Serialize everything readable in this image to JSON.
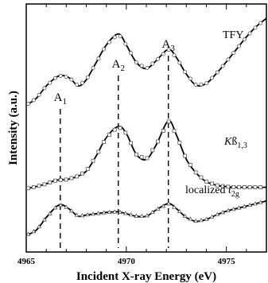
{
  "chart_data": {
    "type": "line",
    "xlabel": "Incident X-ray Energy (eV)",
    "ylabel": "Intensity (a.u.)",
    "xlim": [
      4965,
      4977
    ],
    "xticks": [
      4965,
      4970,
      4975
    ],
    "y_tick_labels": "none",
    "grid": false,
    "legend": "none",
    "peaks": [
      {
        "name": "A",
        "sub": "1",
        "x": 4966.7
      },
      {
        "name": "A",
        "sub": "2",
        "x": 4969.6
      },
      {
        "name": "A",
        "sub": "3",
        "x": 4972.1
      }
    ],
    "series": [
      {
        "name": "TFY",
        "label_parts": [
          {
            "text": "TFY",
            "italic": false,
            "sub": false
          }
        ],
        "marker": "circle",
        "x": [
          4965.0,
          4965.5,
          4966.0,
          4966.5,
          4966.8,
          4967.2,
          4967.6,
          4968.0,
          4968.5,
          4969.0,
          4969.6,
          4970.0,
          4970.5,
          4971.0,
          4971.5,
          4972.1,
          4972.5,
          4973.0,
          4973.5,
          4974.0,
          4974.5,
          4975.0,
          4975.5,
          4976.0,
          4976.5,
          4977.0
        ],
        "y": [
          0.65,
          0.76,
          0.96,
          1.1,
          1.13,
          1.08,
          0.96,
          1.06,
          1.34,
          1.62,
          1.8,
          1.62,
          1.34,
          1.24,
          1.37,
          1.55,
          1.42,
          1.15,
          0.97,
          1.0,
          1.16,
          1.35,
          1.55,
          1.75,
          1.92,
          2.05
        ]
      },
      {
        "name": "Kβ1,3",
        "label_parts": [
          {
            "text": "K",
            "italic": true,
            "sub": false
          },
          {
            "text": "ß",
            "italic": false,
            "sub": false
          },
          {
            "text": "1,3",
            "italic": false,
            "sub": true
          }
        ],
        "marker": "square",
        "x": [
          4965.0,
          4965.5,
          4966.0,
          4966.5,
          4967.0,
          4967.5,
          4968.0,
          4968.5,
          4969.0,
          4969.6,
          4970.0,
          4970.5,
          4971.0,
          4971.5,
          4972.1,
          4972.5,
          4973.0,
          4973.5,
          4974.0,
          4974.5,
          4975.0,
          4975.5,
          4976.0,
          4976.5,
          4977.0
        ],
        "y": [
          0.03,
          0.06,
          0.1,
          0.15,
          0.16,
          0.2,
          0.28,
          0.5,
          0.76,
          0.92,
          0.82,
          0.52,
          0.45,
          0.66,
          1.0,
          0.8,
          0.45,
          0.25,
          0.13,
          0.08,
          0.06,
          0.05,
          0.05,
          0.05,
          0.05
        ]
      },
      {
        "name": "localized t2g",
        "label_parts": [
          {
            "text": "localized ",
            "italic": false,
            "sub": false
          },
          {
            "text": "t",
            "italic": true,
            "sub": false
          },
          {
            "text": "2g",
            "italic": false,
            "sub": true
          }
        ],
        "marker": "triangle",
        "x": [
          4965.0,
          4965.5,
          4966.0,
          4966.5,
          4966.8,
          4967.2,
          4967.6,
          4968.0,
          4968.5,
          4969.0,
          4969.6,
          4970.0,
          4970.5,
          4971.0,
          4971.5,
          4972.1,
          4972.5,
          4973.0,
          4973.5,
          4974.0,
          4974.5,
          4975.0,
          4975.5,
          4976.0,
          4976.5,
          4977.0
        ],
        "y": [
          0.0,
          0.08,
          0.28,
          0.45,
          0.48,
          0.4,
          0.3,
          0.32,
          0.34,
          0.36,
          0.37,
          0.34,
          0.3,
          0.3,
          0.4,
          0.5,
          0.42,
          0.28,
          0.22,
          0.25,
          0.32,
          0.38,
          0.42,
          0.46,
          0.5,
          0.54
        ]
      }
    ]
  }
}
